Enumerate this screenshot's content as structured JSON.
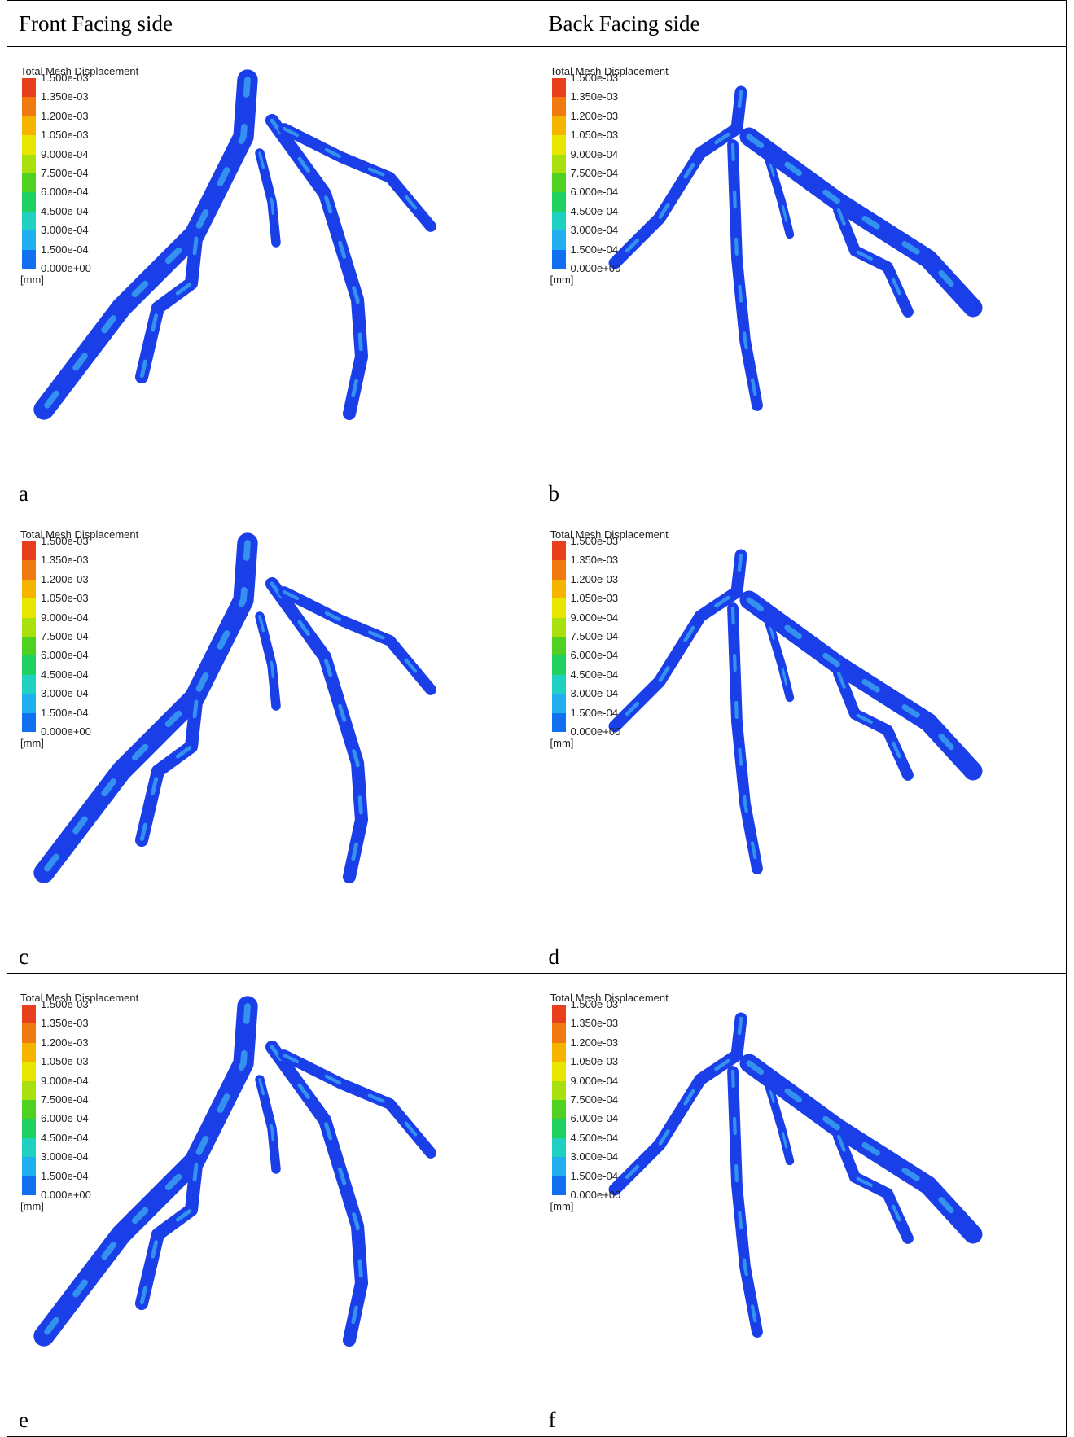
{
  "header": [
    "Front Facing side",
    "Back Facing side"
  ],
  "panels": [
    {
      "label": "a",
      "legend": {
        "title": "Total Mesh Displacement",
        "ticks": [
          "1.500e-03",
          "1.350e-03",
          "1.200e-03",
          "1.050e-03",
          "9.000e-04",
          "7.500e-04",
          "6.000e-04",
          "4.500e-04",
          "3.000e-04",
          "1.500e-04",
          "0.000e+00"
        ],
        "unit": "[mm]"
      }
    },
    {
      "label": "b",
      "legend": {
        "title": "Total Mesh Displacement",
        "ticks": [
          "1.500e-03",
          "1.350e-03",
          "1.200e-03",
          "1.050e-03",
          "9.000e-04",
          "7.500e-04",
          "6.000e-04",
          "4.500e-04",
          "3.000e-04",
          "1.500e-04",
          "0.000e+00"
        ],
        "unit": "[mm]"
      }
    },
    {
      "label": "c",
      "legend": {
        "title": "Total Mesh Displacement",
        "ticks": [
          "1.500e-03",
          "1.350e-03",
          "1.200e-03",
          "1.050e-03",
          "9.000e-04",
          "7.500e-04",
          "6.000e-04",
          "4.500e-04",
          "3.000e-04",
          "1.500e-04",
          "0.000e+00"
        ],
        "unit": "[mm]"
      }
    },
    {
      "label": "d",
      "legend": {
        "title": "Total Mesh Displacement",
        "ticks": [
          "1.500e-03",
          "1.350e-03",
          "1.200e-03",
          "1.050e-03",
          "9.000e-04",
          "7.500e-04",
          "6.000e-04",
          "4.500e-04",
          "3.000e-04",
          "1.500e-04",
          "0.000e+00"
        ],
        "unit": "[mm]"
      }
    },
    {
      "label": "e",
      "legend": {
        "title": "Total Mesh Displacement",
        "ticks": [
          "1.500e-03",
          "1.350e-03",
          "1.200e-03",
          "1.050e-03",
          "9.000e-04",
          "7.500e-04",
          "6.000e-04",
          "4.500e-04",
          "3.000e-04",
          "1.500e-04",
          "0.000e+00"
        ],
        "unit": "[mm]"
      }
    },
    {
      "label": "f",
      "legend": {
        "title": "Total Mesh Displacement",
        "ticks": [
          "1.500e-03",
          "1.350e-03",
          "1.200e-03",
          "1.050e-03",
          "9.000e-04",
          "7.500e-04",
          "6.000e-04",
          "4.500e-04",
          "3.000e-04",
          "1.500e-04",
          "0.000e+00"
        ],
        "unit": "[mm]"
      }
    }
  ]
}
